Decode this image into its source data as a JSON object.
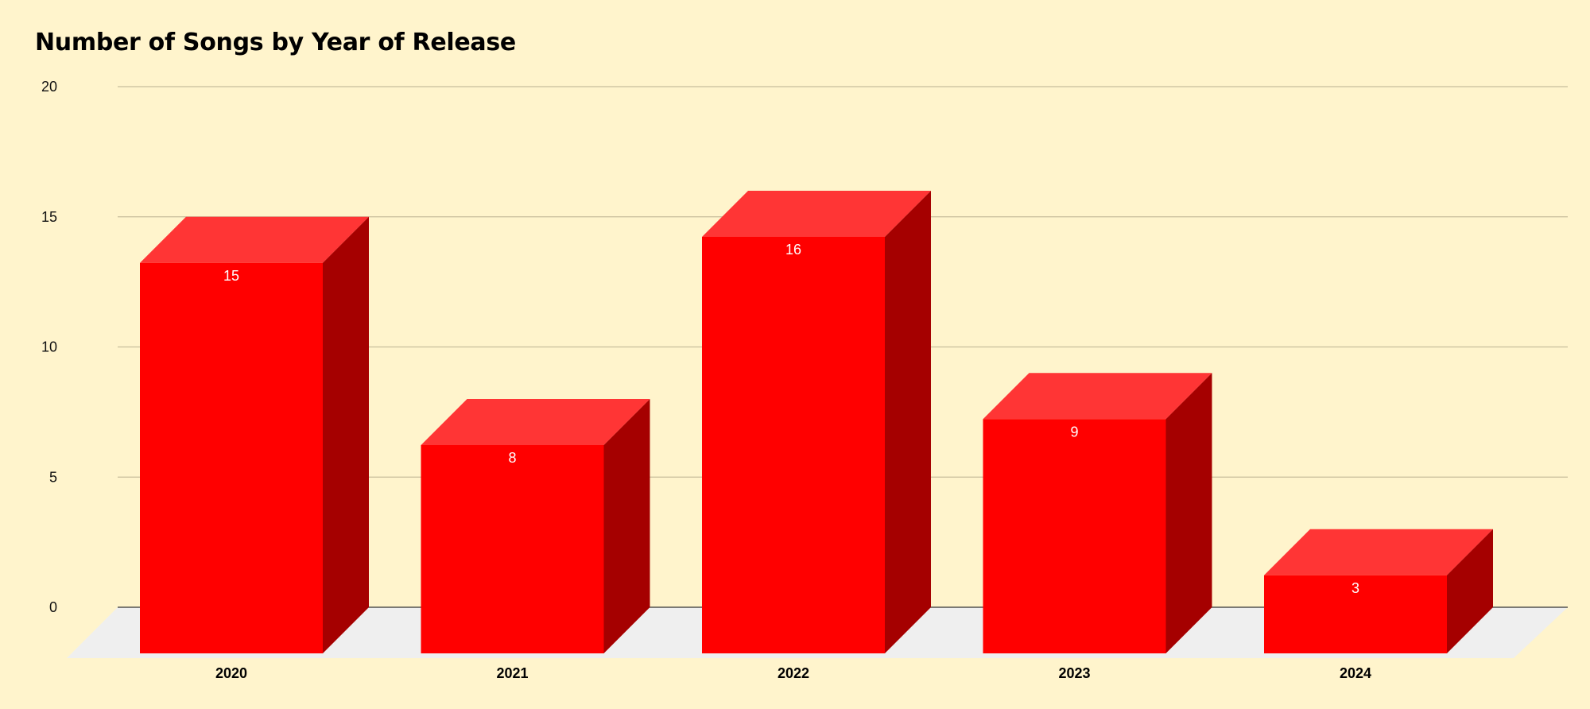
{
  "chart_data": {
    "type": "bar",
    "title": "Number of Songs by Year of Release",
    "xlabel": "",
    "ylabel": "",
    "categories": [
      "2020",
      "2021",
      "2022",
      "2023",
      "2024"
    ],
    "values": [
      15,
      8,
      16,
      9,
      3
    ],
    "data_labels": [
      "15",
      "8",
      "16",
      "9",
      "3"
    ],
    "ylim": [
      0,
      20
    ],
    "yticks": [
      "0",
      "5",
      "10",
      "15",
      "20"
    ],
    "ytick_values": [
      0,
      5,
      10,
      15,
      20
    ],
    "grid": true,
    "style": "3d",
    "colors": {
      "background": "#FFF4CC",
      "bar_front": "#FF0000",
      "bar_top": "#FF3535",
      "bar_side": "#A50000",
      "floor": "#EFEFEF",
      "gridline": "#C8BE9C",
      "baseline": "#333333"
    }
  }
}
